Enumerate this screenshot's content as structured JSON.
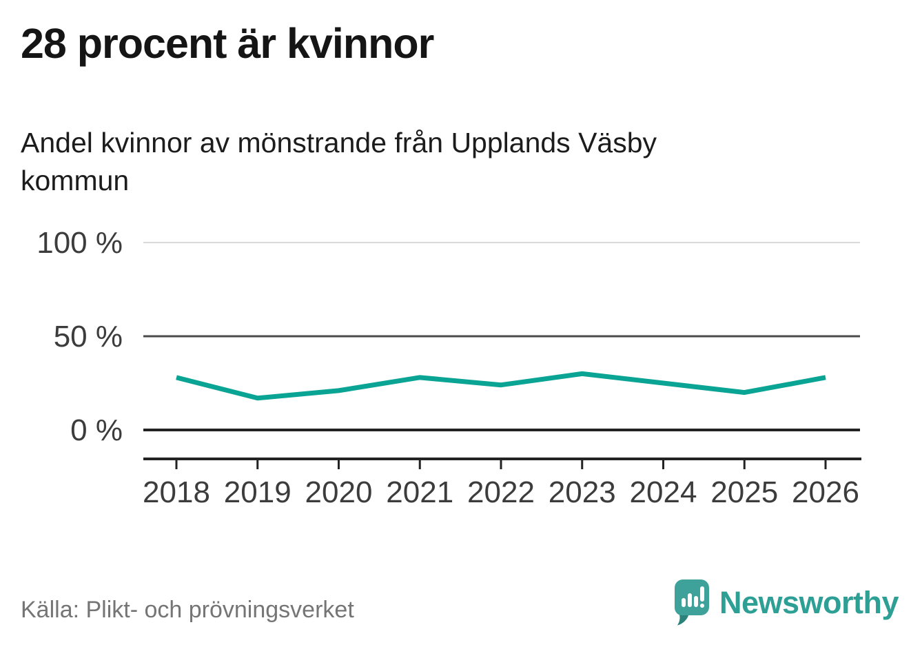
{
  "chart_data": {
    "type": "line",
    "title": "28 procent är kvinnor",
    "subtitle": "Andel kvinnor av mönstrande från Upplands Väsby kommun",
    "categories": [
      "2018",
      "2019",
      "2020",
      "2021",
      "2022",
      "2023",
      "2024",
      "2025",
      "2026"
    ],
    "series": [
      {
        "name": "Andel kvinnor av mönstrande",
        "values": [
          28,
          17,
          21,
          28,
          24,
          30,
          25,
          20,
          28
        ]
      }
    ],
    "unit": "%",
    "ylim": [
      0,
      100
    ],
    "yticks": [
      {
        "value": 100,
        "label": "100 %"
      },
      {
        "value": 50,
        "label": "50 %"
      },
      {
        "value": 0,
        "label": "0 %"
      }
    ],
    "grid": "horizontal",
    "legend": "none",
    "line_color": "#0aa495"
  },
  "footer": {
    "source": "Källa: Plikt- och prövningsverket",
    "brand": "Newsworthy",
    "logo_icon": "newsworthy-speech-bubble-chart-icon"
  },
  "colors": {
    "accent": "#0aa495",
    "logo": "#3fa29a",
    "logo_shadow": "#2b827b",
    "text": "#151515",
    "muted_text": "#757575"
  }
}
